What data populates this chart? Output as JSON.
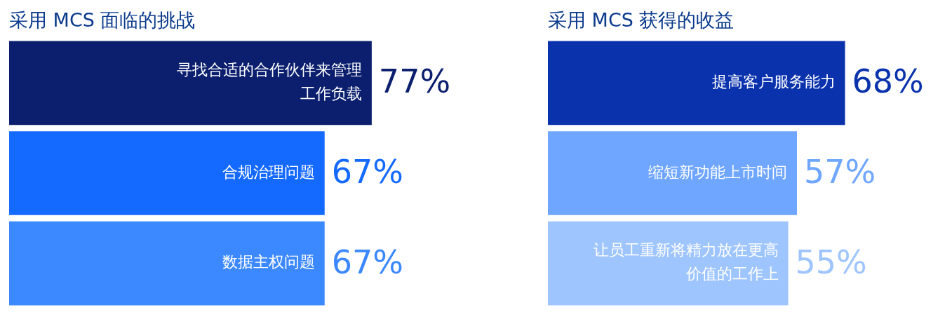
{
  "chart_data": [
    {
      "type": "bar",
      "orientation": "horizontal",
      "title": "采用 MCS 面临的挑战",
      "categories": [
        "寻找合适的合作伙伴来管理工作负载",
        "合规治理问题",
        "数据主权问题"
      ],
      "values": [
        77,
        67,
        67
      ],
      "value_labels": [
        "77%",
        "67%",
        "67%"
      ],
      "colors": [
        "#0b1f6e",
        "#1469ff",
        "#3b88ff"
      ],
      "tick_labels": false
    },
    {
      "type": "bar",
      "orientation": "horizontal",
      "title": "采用 MCS 获得的收益",
      "categories": [
        "提高客户服务能力",
        "缩短新功能上市时间",
        "让员工重新将精力放在更高价值的工作上"
      ],
      "values": [
        68,
        57,
        55
      ],
      "value_labels": [
        "68%",
        "57%",
        "55%"
      ],
      "colors": [
        "#0a32ad",
        "#6fa6ff",
        "#9fc5ff"
      ],
      "tick_labels": false
    }
  ]
}
